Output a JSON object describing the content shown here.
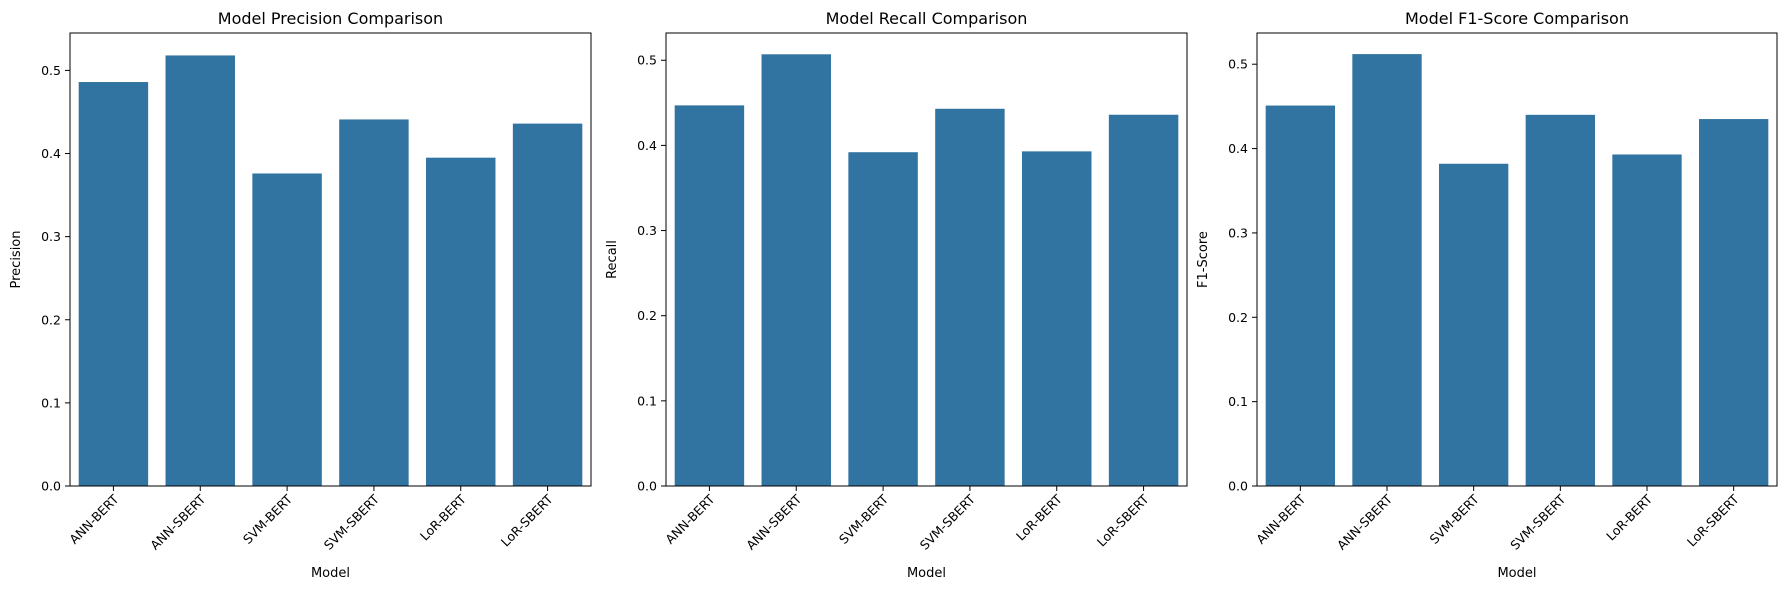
{
  "chart_data": [
    {
      "type": "bar",
      "title": "Model Precision Comparison",
      "xlabel": "Model",
      "ylabel": "Precision",
      "categories": [
        "ANN-BERT",
        "ANN-SBERT",
        "SVM-BERT",
        "SVM-SBERT",
        "LoR-BERT",
        "LoR-SBERT"
      ],
      "values": [
        0.486,
        0.518,
        0.376,
        0.441,
        0.395,
        0.436
      ],
      "ylim": [
        0,
        0.545
      ],
      "yticks": [
        "0.0",
        "0.1",
        "0.2",
        "0.3",
        "0.4",
        "0.5"
      ],
      "color": "#3274a1",
      "grid": false
    },
    {
      "type": "bar",
      "title": "Model Recall Comparison",
      "xlabel": "Model",
      "ylabel": "Recall",
      "categories": [
        "ANN-BERT",
        "ANN-SBERT",
        "SVM-BERT",
        "SVM-SBERT",
        "LoR-BERT",
        "LoR-SBERT"
      ],
      "values": [
        0.447,
        0.507,
        0.392,
        0.443,
        0.393,
        0.436
      ],
      "ylim": [
        0,
        0.532
      ],
      "yticks": [
        "0.0",
        "0.1",
        "0.2",
        "0.3",
        "0.4",
        "0.5"
      ],
      "color": "#3274a1",
      "grid": false
    },
    {
      "type": "bar",
      "title": "Model F1-Score Comparison",
      "xlabel": "Model",
      "ylabel": "F1-Score",
      "categories": [
        "ANN-BERT",
        "ANN-SBERT",
        "SVM-BERT",
        "SVM-SBERT",
        "LoR-BERT",
        "LoR-SBERT"
      ],
      "values": [
        0.451,
        0.512,
        0.382,
        0.44,
        0.393,
        0.435
      ],
      "ylim": [
        0,
        0.537
      ],
      "yticks": [
        "0.0",
        "0.1",
        "0.2",
        "0.3",
        "0.4",
        "0.5"
      ],
      "color": "#3274a1",
      "grid": false
    }
  ]
}
